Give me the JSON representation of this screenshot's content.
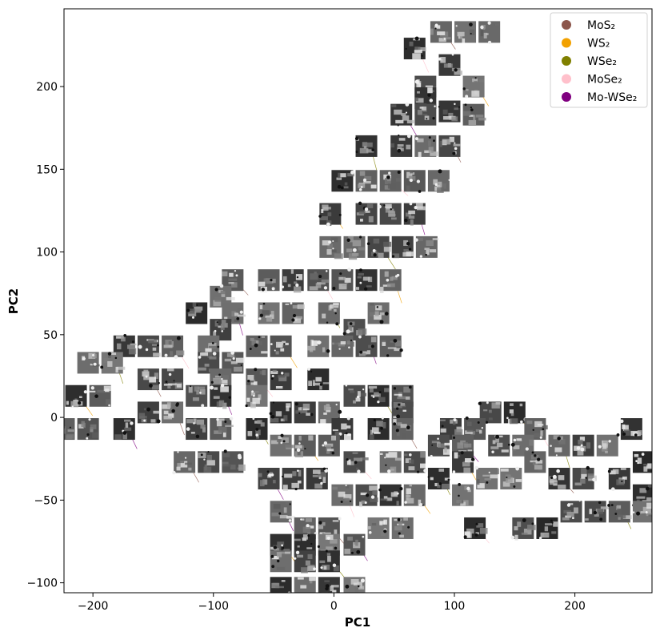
{
  "chart_data": {
    "type": "scatter",
    "title": "",
    "xlabel": "PC1",
    "ylabel": "PC2",
    "xlim": [
      -224,
      264
    ],
    "ylim": [
      -106,
      247
    ],
    "x_ticks": [
      -200,
      -100,
      0,
      100,
      200
    ],
    "y_ticks": [
      -100,
      -50,
      0,
      50,
      100,
      150,
      200
    ],
    "x_tick_labels": [
      "−200",
      "−100",
      "0",
      "100",
      "200"
    ],
    "y_tick_labels": [
      "−100",
      "−50",
      "0",
      "50",
      "100",
      "150",
      "200"
    ],
    "grid": false,
    "legend_position": "top-right",
    "marker": "image-thumbnail (grayscale microscopy patch)",
    "series": [
      {
        "name": "MoS₂",
        "color": "#8c564b"
      },
      {
        "name": "WS₂",
        "color": "#f2a100"
      },
      {
        "name": "WSe₂",
        "color": "#808000"
      },
      {
        "name": "MoSe₂",
        "color": "#ffc0cb"
      },
      {
        "name": "Mo-WSe₂",
        "color": "#800080"
      }
    ],
    "points": [
      [
        89,
        233
      ],
      [
        109,
        233
      ],
      [
        129,
        233
      ],
      [
        67,
        223
      ],
      [
        96,
        213
      ],
      [
        76,
        200
      ],
      [
        116,
        200
      ],
      [
        76,
        193
      ],
      [
        96,
        185
      ],
      [
        56,
        183
      ],
      [
        76,
        183
      ],
      [
        116,
        183
      ],
      [
        27,
        164
      ],
      [
        56,
        164
      ],
      [
        76,
        164
      ],
      [
        96,
        164
      ],
      [
        7,
        143
      ],
      [
        27,
        143
      ],
      [
        47,
        143
      ],
      [
        67,
        143
      ],
      [
        87,
        143
      ],
      [
        -3,
        123
      ],
      [
        27,
        123
      ],
      [
        47,
        123
      ],
      [
        67,
        123
      ],
      [
        -3,
        103
      ],
      [
        17,
        103
      ],
      [
        37,
        103
      ],
      [
        57,
        103
      ],
      [
        77,
        103
      ],
      [
        -84,
        83
      ],
      [
        -54,
        83
      ],
      [
        -34,
        83
      ],
      [
        -13,
        83
      ],
      [
        7,
        83
      ],
      [
        27,
        83
      ],
      [
        47,
        83
      ],
      [
        -94,
        73
      ],
      [
        -114,
        63
      ],
      [
        -84,
        63
      ],
      [
        -54,
        63
      ],
      [
        -34,
        63
      ],
      [
        -4,
        63
      ],
      [
        37,
        63
      ],
      [
        -94,
        53
      ],
      [
        17,
        53
      ],
      [
        -174,
        43
      ],
      [
        -154,
        43
      ],
      [
        -134,
        43
      ],
      [
        -104,
        43
      ],
      [
        -64,
        43
      ],
      [
        -44,
        43
      ],
      [
        -13,
        43
      ],
      [
        7,
        43
      ],
      [
        27,
        43
      ],
      [
        47,
        43
      ],
      [
        -204,
        33
      ],
      [
        -184,
        33
      ],
      [
        -104,
        33
      ],
      [
        -84,
        33
      ],
      [
        -154,
        23
      ],
      [
        -134,
        23
      ],
      [
        -94,
        23
      ],
      [
        -64,
        23
      ],
      [
        -44,
        23
      ],
      [
        -13,
        23
      ],
      [
        -214,
        13
      ],
      [
        -194,
        13
      ],
      [
        -114,
        13
      ],
      [
        -94,
        13
      ],
      [
        -64,
        13
      ],
      [
        17,
        13
      ],
      [
        37,
        13
      ],
      [
        57,
        13
      ],
      [
        -154,
        3
      ],
      [
        -134,
        3
      ],
      [
        -44,
        3
      ],
      [
        -24,
        3
      ],
      [
        -4,
        3
      ],
      [
        57,
        3
      ],
      [
        130,
        3
      ],
      [
        150,
        3
      ],
      [
        -224,
        -7
      ],
      [
        -204,
        -7
      ],
      [
        -174,
        -7
      ],
      [
        -114,
        -7
      ],
      [
        -94,
        -7
      ],
      [
        -64,
        -7
      ],
      [
        7,
        -7
      ],
      [
        37,
        -7
      ],
      [
        57,
        -7
      ],
      [
        97,
        -7
      ],
      [
        117,
        -7
      ],
      [
        167,
        -7
      ],
      [
        247,
        -7
      ],
      [
        -44,
        -17
      ],
      [
        -24,
        -17
      ],
      [
        -4,
        -17
      ],
      [
        87,
        -17
      ],
      [
        107,
        -17
      ],
      [
        137,
        -17
      ],
      [
        157,
        -17
      ],
      [
        187,
        -17
      ],
      [
        207,
        -17
      ],
      [
        227,
        -17
      ],
      [
        -124,
        -27
      ],
      [
        -104,
        -27
      ],
      [
        -84,
        -27
      ],
      [
        17,
        -27
      ],
      [
        47,
        -27
      ],
      [
        67,
        -27
      ],
      [
        107,
        -27
      ],
      [
        167,
        -27
      ],
      [
        257,
        -27
      ],
      [
        -54,
        -37
      ],
      [
        -34,
        -37
      ],
      [
        -14,
        -37
      ],
      [
        87,
        -37
      ],
      [
        127,
        -37
      ],
      [
        147,
        -37
      ],
      [
        187,
        -37
      ],
      [
        207,
        -37
      ],
      [
        237,
        -37
      ],
      [
        7,
        -47
      ],
      [
        27,
        -47
      ],
      [
        47,
        -47
      ],
      [
        67,
        -47
      ],
      [
        107,
        -47
      ],
      [
        257,
        -47
      ],
      [
        -44,
        -57
      ],
      [
        197,
        -57
      ],
      [
        217,
        -57
      ],
      [
        237,
        -57
      ],
      [
        257,
        -57
      ],
      [
        -24,
        -67
      ],
      [
        -4,
        -67
      ],
      [
        37,
        -67
      ],
      [
        57,
        -67
      ],
      [
        117,
        -67
      ],
      [
        157,
        -67
      ],
      [
        177,
        -67
      ],
      [
        -44,
        -77
      ],
      [
        -24,
        -77
      ],
      [
        -4,
        -77
      ],
      [
        17,
        -77
      ],
      [
        -44,
        -87
      ],
      [
        -24,
        -87
      ],
      [
        -4,
        -87
      ],
      [
        -44,
        -103
      ],
      [
        -24,
        -103
      ],
      [
        -4,
        -103
      ],
      [
        17,
        -103
      ]
    ]
  }
}
